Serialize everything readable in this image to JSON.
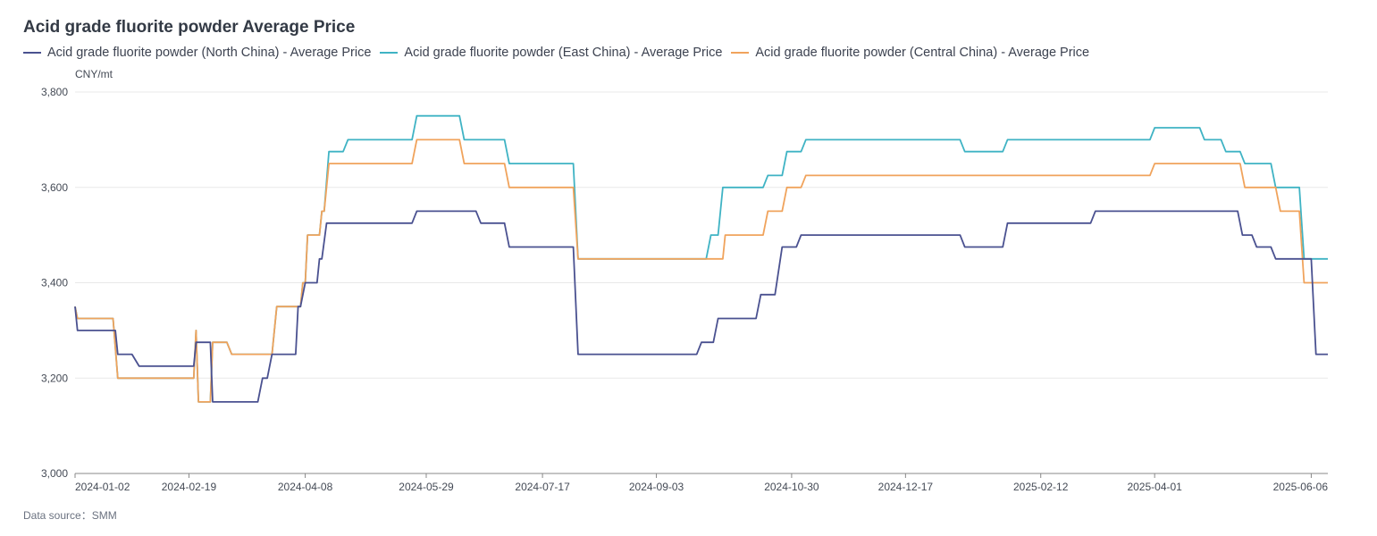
{
  "title": "Acid grade fluorite powder Average Price",
  "source": "Data source：SMM",
  "colors": {
    "north": "#4a5190",
    "east": "#3fb3c4",
    "central": "#f0a35c",
    "grid": "#e8e8e8",
    "axis": "#888888"
  },
  "chart_data": {
    "type": "line",
    "title": "Acid grade fluorite powder Average Price",
    "ylabel": "CNY/mt",
    "ylim": [
      3000,
      3800
    ],
    "yticks": [
      "3,000",
      "3,200",
      "3,400",
      "3,600",
      "3,800"
    ],
    "yticks_values": [
      3000,
      3200,
      3400,
      3600,
      3800
    ],
    "xlim": [
      "2024-01-02",
      "2025-06-13"
    ],
    "xticks": [
      "2024-01-02",
      "2024-02-19",
      "2024-04-08",
      "2024-05-29",
      "2024-07-17",
      "2024-09-03",
      "2024-10-30",
      "2024-12-17",
      "2025-02-12",
      "2025-04-01",
      "2025-06-06"
    ],
    "grid": "horizontal",
    "legend_position": "top-left",
    "series": [
      {
        "name": "Acid grade fluorite powder (North China) - Average Price",
        "color": "#4a5190",
        "points": [
          [
            "2024-01-02",
            3350
          ],
          [
            "2024-01-03",
            3300
          ],
          [
            "2024-01-19",
            3300
          ],
          [
            "2024-01-20",
            3250
          ],
          [
            "2024-01-26",
            3250
          ],
          [
            "2024-01-29",
            3225
          ],
          [
            "2024-02-21",
            3225
          ],
          [
            "2024-02-22",
            3275
          ],
          [
            "2024-02-28",
            3275
          ],
          [
            "2024-02-29",
            3150
          ],
          [
            "2024-03-19",
            3150
          ],
          [
            "2024-03-21",
            3200
          ],
          [
            "2024-03-23",
            3200
          ],
          [
            "2024-03-25",
            3250
          ],
          [
            "2024-04-04",
            3250
          ],
          [
            "2024-04-05",
            3350
          ],
          [
            "2024-04-06",
            3350
          ],
          [
            "2024-04-08",
            3400
          ],
          [
            "2024-04-13",
            3400
          ],
          [
            "2024-04-14",
            3450
          ],
          [
            "2024-04-15",
            3450
          ],
          [
            "2024-04-17",
            3525
          ],
          [
            "2024-05-23",
            3525
          ],
          [
            "2024-05-25",
            3550
          ],
          [
            "2024-06-19",
            3550
          ],
          [
            "2024-06-21",
            3525
          ],
          [
            "2024-07-01",
            3525
          ],
          [
            "2024-07-03",
            3475
          ],
          [
            "2024-07-30",
            3475
          ],
          [
            "2024-08-01",
            3250
          ],
          [
            "2024-09-20",
            3250
          ],
          [
            "2024-09-22",
            3275
          ],
          [
            "2024-09-27",
            3275
          ],
          [
            "2024-09-29",
            3325
          ],
          [
            "2024-10-15",
            3325
          ],
          [
            "2024-10-17",
            3375
          ],
          [
            "2024-10-23",
            3375
          ],
          [
            "2024-10-26",
            3475
          ],
          [
            "2024-11-01",
            3475
          ],
          [
            "2024-11-03",
            3500
          ],
          [
            "2025-01-09",
            3500
          ],
          [
            "2025-01-11",
            3475
          ],
          [
            "2025-01-27",
            3475
          ],
          [
            "2025-01-29",
            3525
          ],
          [
            "2025-03-05",
            3525
          ],
          [
            "2025-03-07",
            3550
          ],
          [
            "2025-05-06",
            3550
          ],
          [
            "2025-05-08",
            3500
          ],
          [
            "2025-05-12",
            3500
          ],
          [
            "2025-05-14",
            3475
          ],
          [
            "2025-05-20",
            3475
          ],
          [
            "2025-05-22",
            3450
          ],
          [
            "2025-06-06",
            3450
          ],
          [
            "2025-06-08",
            3250
          ],
          [
            "2025-06-13",
            3250
          ]
        ]
      },
      {
        "name": "Acid grade fluorite powder (East China) - Average Price",
        "color": "#3fb3c4",
        "points": [
          [
            "2024-01-02",
            3350
          ],
          [
            "2024-01-03",
            3325
          ],
          [
            "2024-01-18",
            3325
          ],
          [
            "2024-01-20",
            3200
          ],
          [
            "2024-02-21",
            3200
          ],
          [
            "2024-02-22",
            3300
          ],
          [
            "2024-02-23",
            3150
          ],
          [
            "2024-02-28",
            3150
          ],
          [
            "2024-02-29",
            3275
          ],
          [
            "2024-03-06",
            3275
          ],
          [
            "2024-03-08",
            3250
          ],
          [
            "2024-03-25",
            3250
          ],
          [
            "2024-03-27",
            3350
          ],
          [
            "2024-04-06",
            3350
          ],
          [
            "2024-04-07",
            3400
          ],
          [
            "2024-04-08",
            3400
          ],
          [
            "2024-04-09",
            3500
          ],
          [
            "2024-04-14",
            3500
          ],
          [
            "2024-04-15",
            3550
          ],
          [
            "2024-04-16",
            3550
          ],
          [
            "2024-04-18",
            3675
          ],
          [
            "2024-04-24",
            3675
          ],
          [
            "2024-04-26",
            3700
          ],
          [
            "2024-05-23",
            3700
          ],
          [
            "2024-05-25",
            3750
          ],
          [
            "2024-06-12",
            3750
          ],
          [
            "2024-06-14",
            3700
          ],
          [
            "2024-07-01",
            3700
          ],
          [
            "2024-07-03",
            3650
          ],
          [
            "2024-07-30",
            3650
          ],
          [
            "2024-08-01",
            3450
          ],
          [
            "2024-09-24",
            3450
          ],
          [
            "2024-09-26",
            3500
          ],
          [
            "2024-09-29",
            3500
          ],
          [
            "2024-10-01",
            3600
          ],
          [
            "2024-10-18",
            3600
          ],
          [
            "2024-10-20",
            3625
          ],
          [
            "2024-10-26",
            3625
          ],
          [
            "2024-10-28",
            3675
          ],
          [
            "2024-11-03",
            3675
          ],
          [
            "2024-11-05",
            3700
          ],
          [
            "2025-01-09",
            3700
          ],
          [
            "2025-01-11",
            3675
          ],
          [
            "2025-01-27",
            3675
          ],
          [
            "2025-01-29",
            3700
          ],
          [
            "2025-03-30",
            3700
          ],
          [
            "2025-04-01",
            3725
          ],
          [
            "2025-04-20",
            3725
          ],
          [
            "2025-04-22",
            3700
          ],
          [
            "2025-04-29",
            3700
          ],
          [
            "2025-05-01",
            3675
          ],
          [
            "2025-05-07",
            3675
          ],
          [
            "2025-05-09",
            3650
          ],
          [
            "2025-05-20",
            3650
          ],
          [
            "2025-05-22",
            3600
          ],
          [
            "2025-06-01",
            3600
          ],
          [
            "2025-06-03",
            3450
          ],
          [
            "2025-06-13",
            3450
          ]
        ]
      },
      {
        "name": "Acid grade fluorite powder (Central China) - Average Price",
        "color": "#f0a35c",
        "points": [
          [
            "2024-01-02",
            3350
          ],
          [
            "2024-01-03",
            3325
          ],
          [
            "2024-01-18",
            3325
          ],
          [
            "2024-01-20",
            3200
          ],
          [
            "2024-02-21",
            3200
          ],
          [
            "2024-02-22",
            3300
          ],
          [
            "2024-02-23",
            3150
          ],
          [
            "2024-02-28",
            3150
          ],
          [
            "2024-02-29",
            3275
          ],
          [
            "2024-03-06",
            3275
          ],
          [
            "2024-03-08",
            3250
          ],
          [
            "2024-03-25",
            3250
          ],
          [
            "2024-03-27",
            3350
          ],
          [
            "2024-04-06",
            3350
          ],
          [
            "2024-04-07",
            3400
          ],
          [
            "2024-04-08",
            3400
          ],
          [
            "2024-04-09",
            3500
          ],
          [
            "2024-04-14",
            3500
          ],
          [
            "2024-04-15",
            3550
          ],
          [
            "2024-04-16",
            3550
          ],
          [
            "2024-04-18",
            3650
          ],
          [
            "2024-05-23",
            3650
          ],
          [
            "2024-05-25",
            3700
          ],
          [
            "2024-06-12",
            3700
          ],
          [
            "2024-06-14",
            3650
          ],
          [
            "2024-07-01",
            3650
          ],
          [
            "2024-07-03",
            3600
          ],
          [
            "2024-07-30",
            3600
          ],
          [
            "2024-08-01",
            3450
          ],
          [
            "2024-10-01",
            3450
          ],
          [
            "2024-10-02",
            3500
          ],
          [
            "2024-10-18",
            3500
          ],
          [
            "2024-10-20",
            3550
          ],
          [
            "2024-10-26",
            3550
          ],
          [
            "2024-10-28",
            3600
          ],
          [
            "2024-11-03",
            3600
          ],
          [
            "2024-11-05",
            3625
          ],
          [
            "2025-03-30",
            3625
          ],
          [
            "2025-04-01",
            3650
          ],
          [
            "2025-05-07",
            3650
          ],
          [
            "2025-05-09",
            3600
          ],
          [
            "2025-05-22",
            3600
          ],
          [
            "2025-05-24",
            3550
          ],
          [
            "2025-06-01",
            3550
          ],
          [
            "2025-06-03",
            3400
          ],
          [
            "2025-06-13",
            3400
          ]
        ]
      }
    ]
  }
}
